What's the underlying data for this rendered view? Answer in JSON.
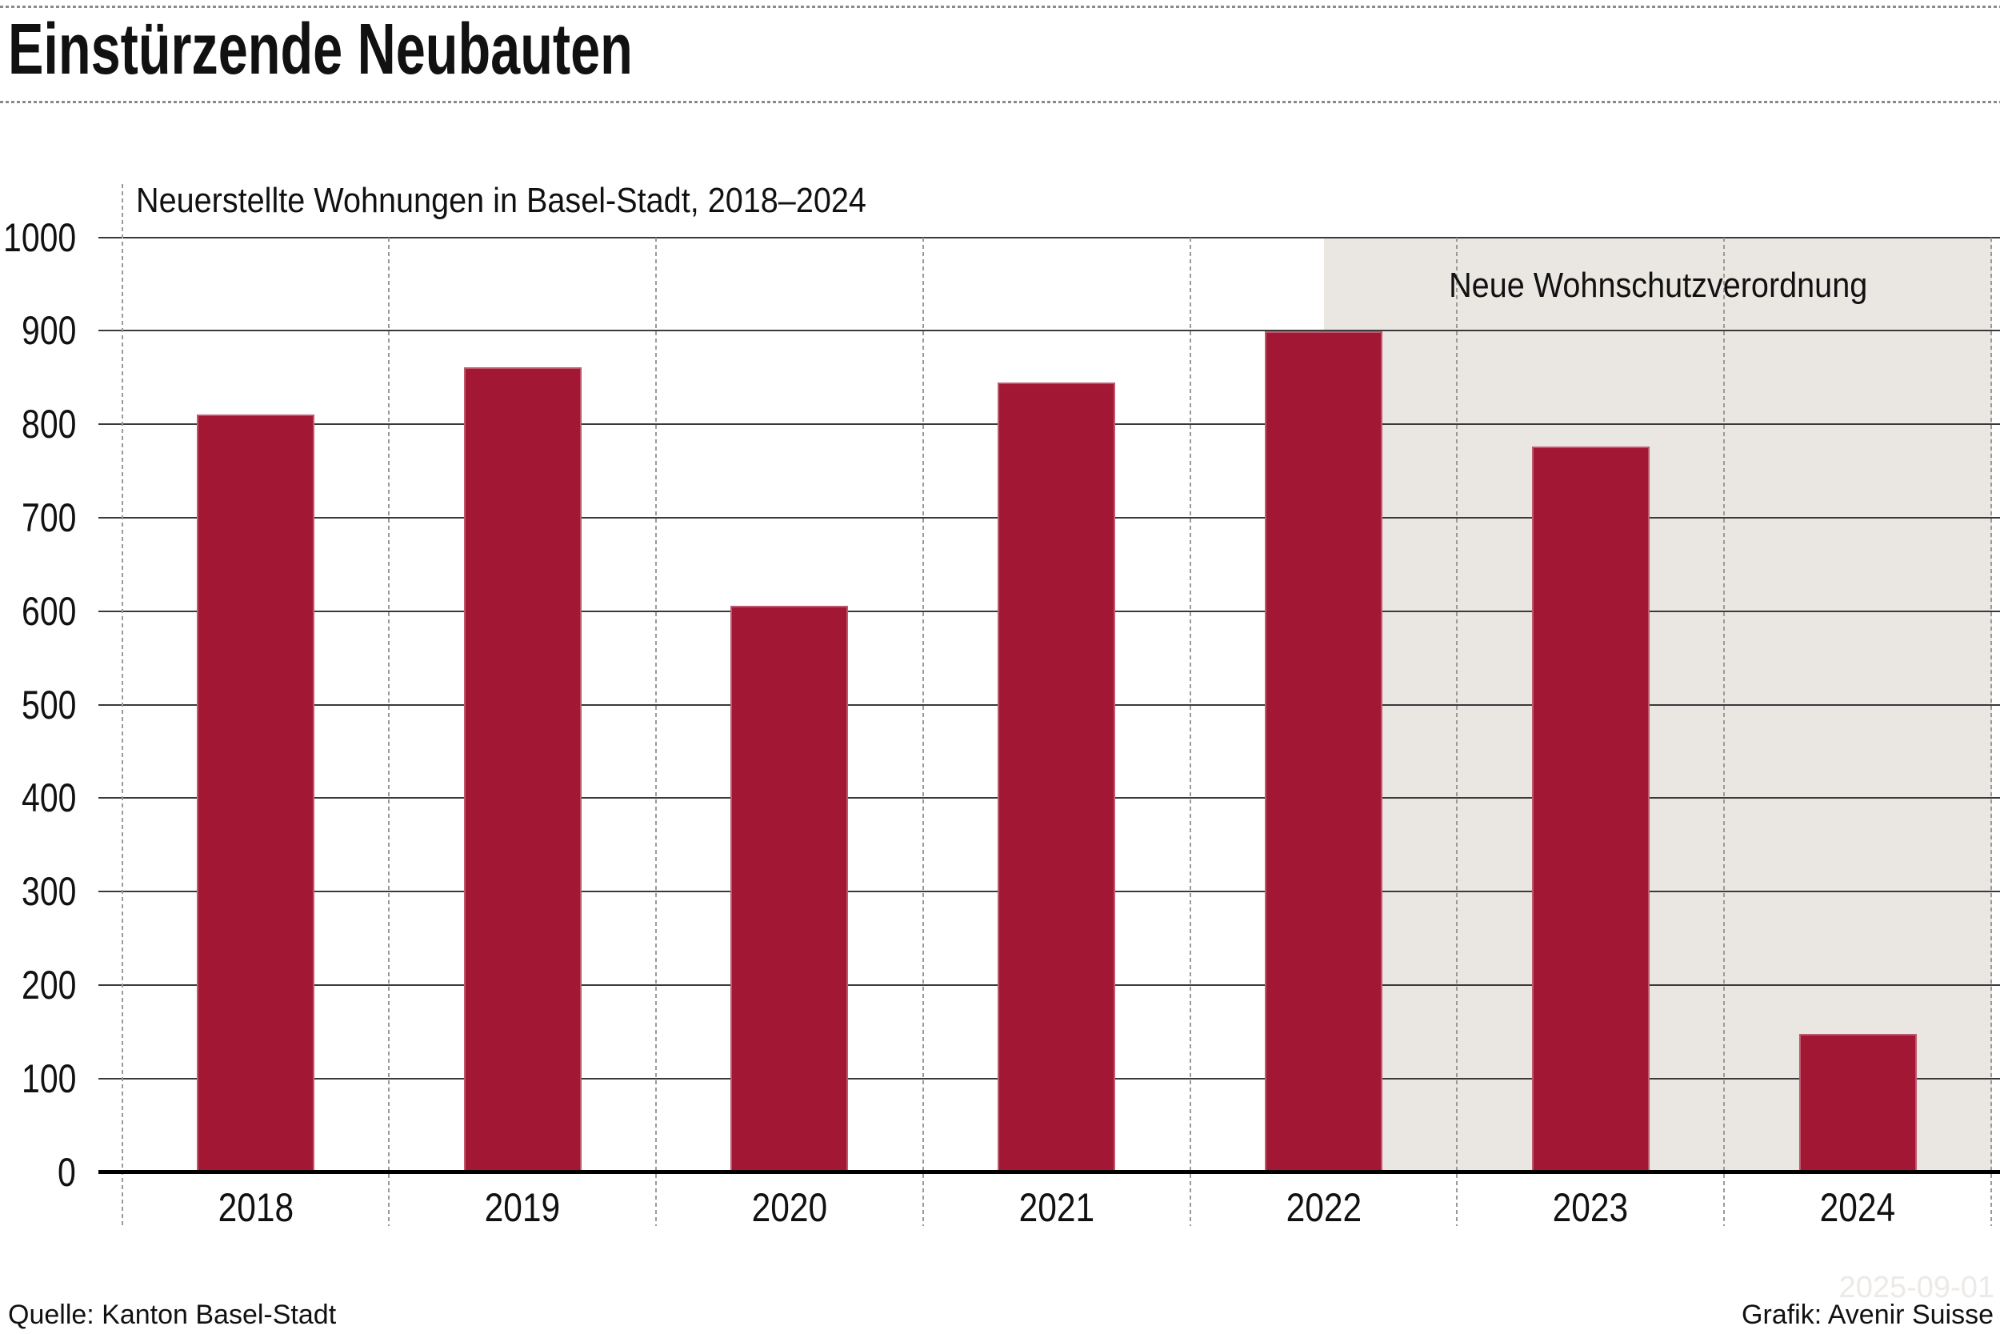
{
  "header": {
    "title": "Einstürzende Neubauten"
  },
  "footer": {
    "source": "Quelle: Kanton Basel-Stadt",
    "credit": "Grafik: Avenir Suisse",
    "watermark": "2025-09-01"
  },
  "colors": {
    "bar": "#A21834",
    "shade": "#EAE7E3",
    "grid": "#3a3a3a",
    "axis": "#000000",
    "dashed": "#9a9a9a",
    "text": "#111111",
    "watermark": "#ECE9E6"
  },
  "chart_data": {
    "type": "bar",
    "title": "Neuerstellte Wohnungen in Basel-Stadt, 2018–2024",
    "categories": [
      "2018",
      "2019",
      "2020",
      "2021",
      "2022",
      "2023",
      "2024"
    ],
    "values": [
      810,
      861,
      606,
      845,
      899,
      776,
      148
    ],
    "xlabel": "",
    "ylabel": "",
    "ylim": [
      0,
      1000
    ],
    "ytick_step": 100,
    "grid": "horizontal solid lines every 100; dashed vertical lines at category boundaries",
    "legend": "none",
    "annotation": {
      "label": "Neue Wohnschutzverordnung",
      "region": "shaded band from middle of 2022 bar to right edge of plot"
    }
  }
}
